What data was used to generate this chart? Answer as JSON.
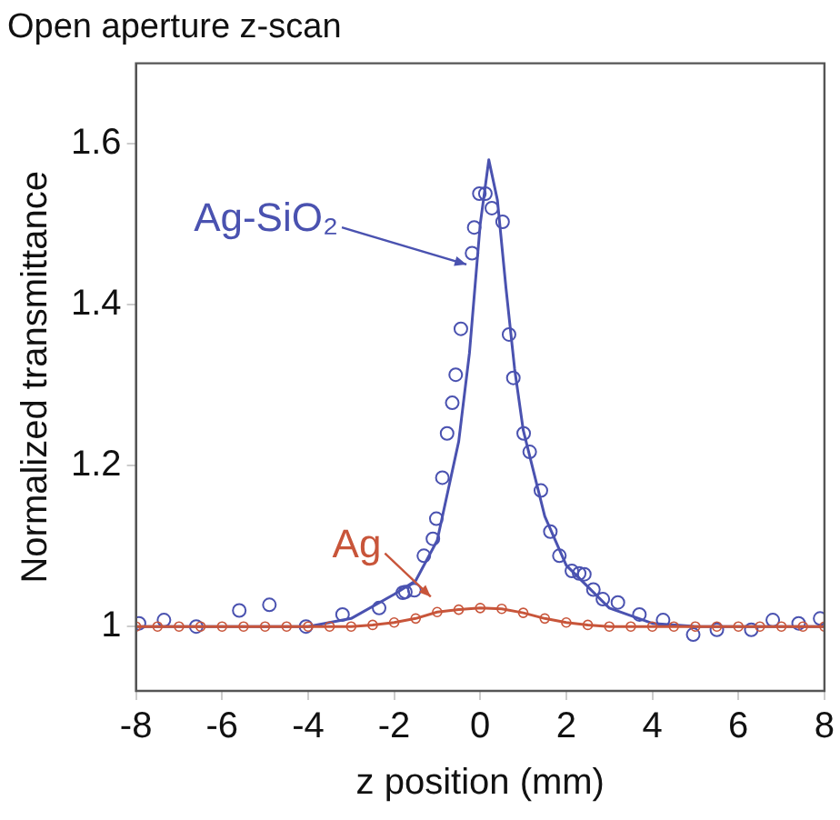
{
  "chart_data": {
    "type": "scatter",
    "title": "Open aperture z-scan",
    "xlabel": "z position (mm)",
    "ylabel": "Normalized transmittance",
    "xlim": [
      -8,
      8
    ],
    "xticks": [
      -8,
      -6,
      -4,
      -2,
      0,
      2,
      4,
      6,
      8
    ],
    "ylim": [
      0.92,
      1.7
    ],
    "yticks": [
      1,
      1.2,
      1.4,
      1.6
    ],
    "grid": false,
    "legend": false,
    "marker": "circle",
    "series": [
      {
        "name": "Ag",
        "type": "line",
        "color": "#c8553a",
        "x": [
          -8,
          -7.5,
          -7,
          -6.5,
          -6,
          -5.5,
          -5,
          -4.5,
          -4,
          -3.5,
          -3,
          -2.5,
          -2,
          -1.5,
          -1,
          -0.5,
          0,
          0.5,
          1,
          1.5,
          2,
          2.5,
          3,
          3.5,
          4,
          4.5,
          5,
          5.5,
          6,
          6.5,
          7,
          7.5,
          8
        ],
        "values": [
          1,
          1,
          1,
          1,
          1,
          1,
          1,
          1,
          1,
          1,
          1,
          1.002,
          1.005,
          1.01,
          1.018,
          1.021,
          1.023,
          1.022,
          1.017,
          1.01,
          1.005,
          1.002,
          1,
          1,
          1,
          1,
          1,
          1,
          1,
          1,
          1,
          1,
          1
        ]
      },
      {
        "name": "Ag-SiO₂",
        "color": "#4a52b0",
        "x": [
          -7.93,
          -7.35,
          -6.6,
          -5.6,
          -4.9,
          -4.05,
          -3.2,
          -2.35,
          -1.8,
          -1.74,
          -1.53,
          -1.31,
          -1.1,
          -1.02,
          -0.88,
          -0.77,
          -0.65,
          -0.57,
          -0.45,
          -0.19,
          -0.14,
          -0.02,
          0.12,
          0.27,
          0.52,
          0.67,
          0.77,
          1.01,
          1.15,
          1.41,
          1.63,
          1.84,
          2.13,
          2.3,
          2.42,
          2.63,
          2.85,
          3.2,
          3.7,
          4.25,
          4.95,
          5.5,
          6.3,
          6.8,
          7.4,
          7.9
        ],
        "values": [
          1.004,
          1.008,
          1,
          1.02,
          1.027,
          1,
          1.015,
          1.023,
          1.042,
          1.043,
          1.045,
          1.088,
          1.109,
          1.134,
          1.185,
          1.24,
          1.278,
          1.313,
          1.37,
          1.464,
          1.496,
          1.538,
          1.538,
          1.52,
          1.503,
          1.363,
          1.309,
          1.24,
          1.217,
          1.169,
          1.118,
          1.088,
          1.069,
          1.066,
          1.065,
          1.046,
          1.034,
          1.03,
          1.015,
          1.008,
          0.99,
          0.996,
          0.996,
          1.008,
          1.004,
          1.01
        ]
      },
      {
        "type": "line",
        "marker": "none",
        "color": "#4a52b0",
        "x": [
          -8,
          -4,
          -3,
          -2,
          -1.5,
          -1,
          -0.5,
          -0.25,
          0,
          0.2,
          0.4,
          0.6,
          0.8,
          1,
          1.5,
          2,
          3,
          4,
          5,
          6,
          8
        ],
        "values": [
          1,
          1,
          1.01,
          1.04,
          1.057,
          1.107,
          1.23,
          1.34,
          1.5,
          1.58,
          1.53,
          1.42,
          1.32,
          1.244,
          1.137,
          1.076,
          1.023,
          1.004,
          1,
          1,
          1
        ]
      }
    ]
  }
}
